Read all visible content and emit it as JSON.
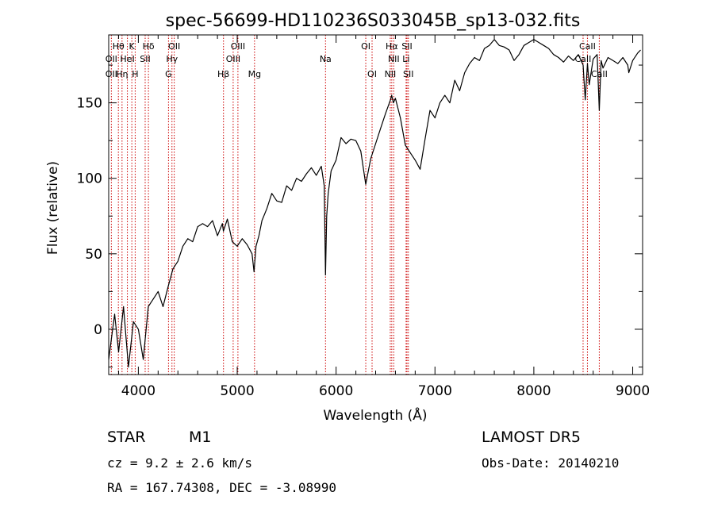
{
  "chart_data": {
    "type": "line",
    "title": "spec-56699-HD110236S033045B_sp13-032.fits",
    "xlabel": "Wavelength (Å)",
    "ylabel": "Flux (relative)",
    "xlim": [
      3700,
      9100
    ],
    "ylim": [
      -30,
      195
    ],
    "xticks": [
      4000,
      5000,
      6000,
      7000,
      8000,
      9000
    ],
    "yticks": [
      0,
      50,
      100,
      150
    ],
    "grid": false,
    "series": [
      {
        "color": "#000000",
        "x": [
          3700,
          3760,
          3800,
          3850,
          3900,
          3950,
          4000,
          4050,
          4100,
          4150,
          4200,
          4250,
          4300,
          4350,
          4400,
          4450,
          4500,
          4550,
          4600,
          4650,
          4700,
          4750,
          4800,
          4850,
          4860,
          4900,
          4950,
          5000,
          5050,
          5100,
          5150,
          5170,
          5190,
          5220,
          5250,
          5300,
          5350,
          5400,
          5450,
          5500,
          5550,
          5600,
          5650,
          5700,
          5750,
          5800,
          5850,
          5880,
          5893,
          5905,
          5920,
          5950,
          6000,
          6050,
          6100,
          6150,
          6200,
          6250,
          6300,
          6350,
          6400,
          6450,
          6500,
          6550,
          6562,
          6580,
          6600,
          6650,
          6700,
          6750,
          6800,
          6850,
          6880,
          6900,
          6950,
          7000,
          7050,
          7100,
          7150,
          7200,
          7250,
          7300,
          7350,
          7400,
          7450,
          7500,
          7550,
          7600,
          7650,
          7700,
          7750,
          7800,
          7850,
          7900,
          7950,
          8000,
          8050,
          8100,
          8150,
          8200,
          8250,
          8300,
          8350,
          8400,
          8450,
          8498,
          8520,
          8542,
          8560,
          8600,
          8640,
          8662,
          8680,
          8700,
          8750,
          8800,
          8850,
          8900,
          8950,
          8960,
          9000,
          9050,
          9080
        ],
        "y": [
          -20,
          10,
          -15,
          15,
          -25,
          5,
          0,
          -20,
          15,
          20,
          25,
          15,
          28,
          40,
          45,
          55,
          60,
          58,
          68,
          70,
          68,
          72,
          62,
          70,
          65,
          73,
          58,
          55,
          60,
          56,
          50,
          38,
          55,
          62,
          72,
          80,
          90,
          85,
          84,
          95,
          92,
          100,
          98,
          103,
          107,
          102,
          108,
          95,
          36,
          75,
          90,
          105,
          112,
          127,
          123,
          126,
          125,
          118,
          96,
          113,
          123,
          133,
          143,
          152,
          155,
          150,
          153,
          140,
          122,
          117,
          112,
          106,
          118,
          126,
          145,
          140,
          150,
          155,
          150,
          165,
          158,
          170,
          176,
          180,
          178,
          186,
          188,
          192,
          188,
          187,
          185,
          178,
          182,
          188,
          190,
          192,
          190,
          188,
          186,
          182,
          180,
          177,
          181,
          178,
          182,
          175,
          152,
          176,
          162,
          179,
          182,
          145,
          178,
          173,
          180,
          178,
          176,
          180,
          175,
          170,
          178,
          183,
          185
        ]
      }
    ],
    "line_markers": [
      {
        "label": "Hθ",
        "x": 3798,
        "row": 1
      },
      {
        "label": "K",
        "x": 3934,
        "row": 1
      },
      {
        "label": "Hδ",
        "x": 4102,
        "row": 1
      },
      {
        "label": "OII",
        "x": 4363,
        "row": 1
      },
      {
        "label": "OIII",
        "x": 5007,
        "row": 1
      },
      {
        "label": "OI",
        "x": 6300,
        "row": 1
      },
      {
        "label": "Hα",
        "x": 6563,
        "row": 1
      },
      {
        "label": "SII",
        "x": 6717,
        "row": 1
      },
      {
        "label": "CaII",
        "x": 8542,
        "row": 1
      },
      {
        "label": "OII",
        "x": 3727,
        "row": 2
      },
      {
        "label": "HeI",
        "x": 3889,
        "row": 2
      },
      {
        "label": "SII",
        "x": 4069,
        "row": 2
      },
      {
        "label": "Hγ",
        "x": 4340,
        "row": 2
      },
      {
        "label": "OIII",
        "x": 4959,
        "row": 2
      },
      {
        "label": "Na",
        "x": 5893,
        "row": 2
      },
      {
        "label": "NII",
        "x": 6583,
        "row": 2
      },
      {
        "label": "Li",
        "x": 6708,
        "row": 2
      },
      {
        "label": "CaII",
        "x": 8498,
        "row": 2
      },
      {
        "label": "OII",
        "x": 3727,
        "row": 3
      },
      {
        "label": "Hη",
        "x": 3835,
        "row": 3
      },
      {
        "label": "H",
        "x": 3968,
        "row": 3
      },
      {
        "label": "G",
        "x": 4305,
        "row": 3
      },
      {
        "label": "Hβ",
        "x": 4861,
        "row": 3
      },
      {
        "label": "Mg",
        "x": 5175,
        "row": 3
      },
      {
        "label": "OI",
        "x": 6364,
        "row": 3
      },
      {
        "label": "NII",
        "x": 6548,
        "row": 3
      },
      {
        "label": "SII",
        "x": 6731,
        "row": 3
      },
      {
        "label": "CaII",
        "x": 8662,
        "row": 3
      }
    ],
    "marker_lines_x": [
      3727,
      3798,
      3835,
      3889,
      3934,
      3968,
      4069,
      4102,
      4305,
      4340,
      4363,
      4861,
      4959,
      5007,
      5175,
      5893,
      6300,
      6364,
      6548,
      6563,
      6583,
      6708,
      6717,
      6731,
      8498,
      8542,
      8662
    ],
    "marker_color": "#cc0000"
  },
  "info": {
    "object_class": "STAR",
    "subclass": "M1",
    "survey": "LAMOST DR5",
    "redshift_text": "cz = 9.2 ± 2.6 km/s",
    "obs_date_text": "Obs-Date: 20140210",
    "coords_text": "RA = 167.74308, DEC =  -3.08990"
  }
}
